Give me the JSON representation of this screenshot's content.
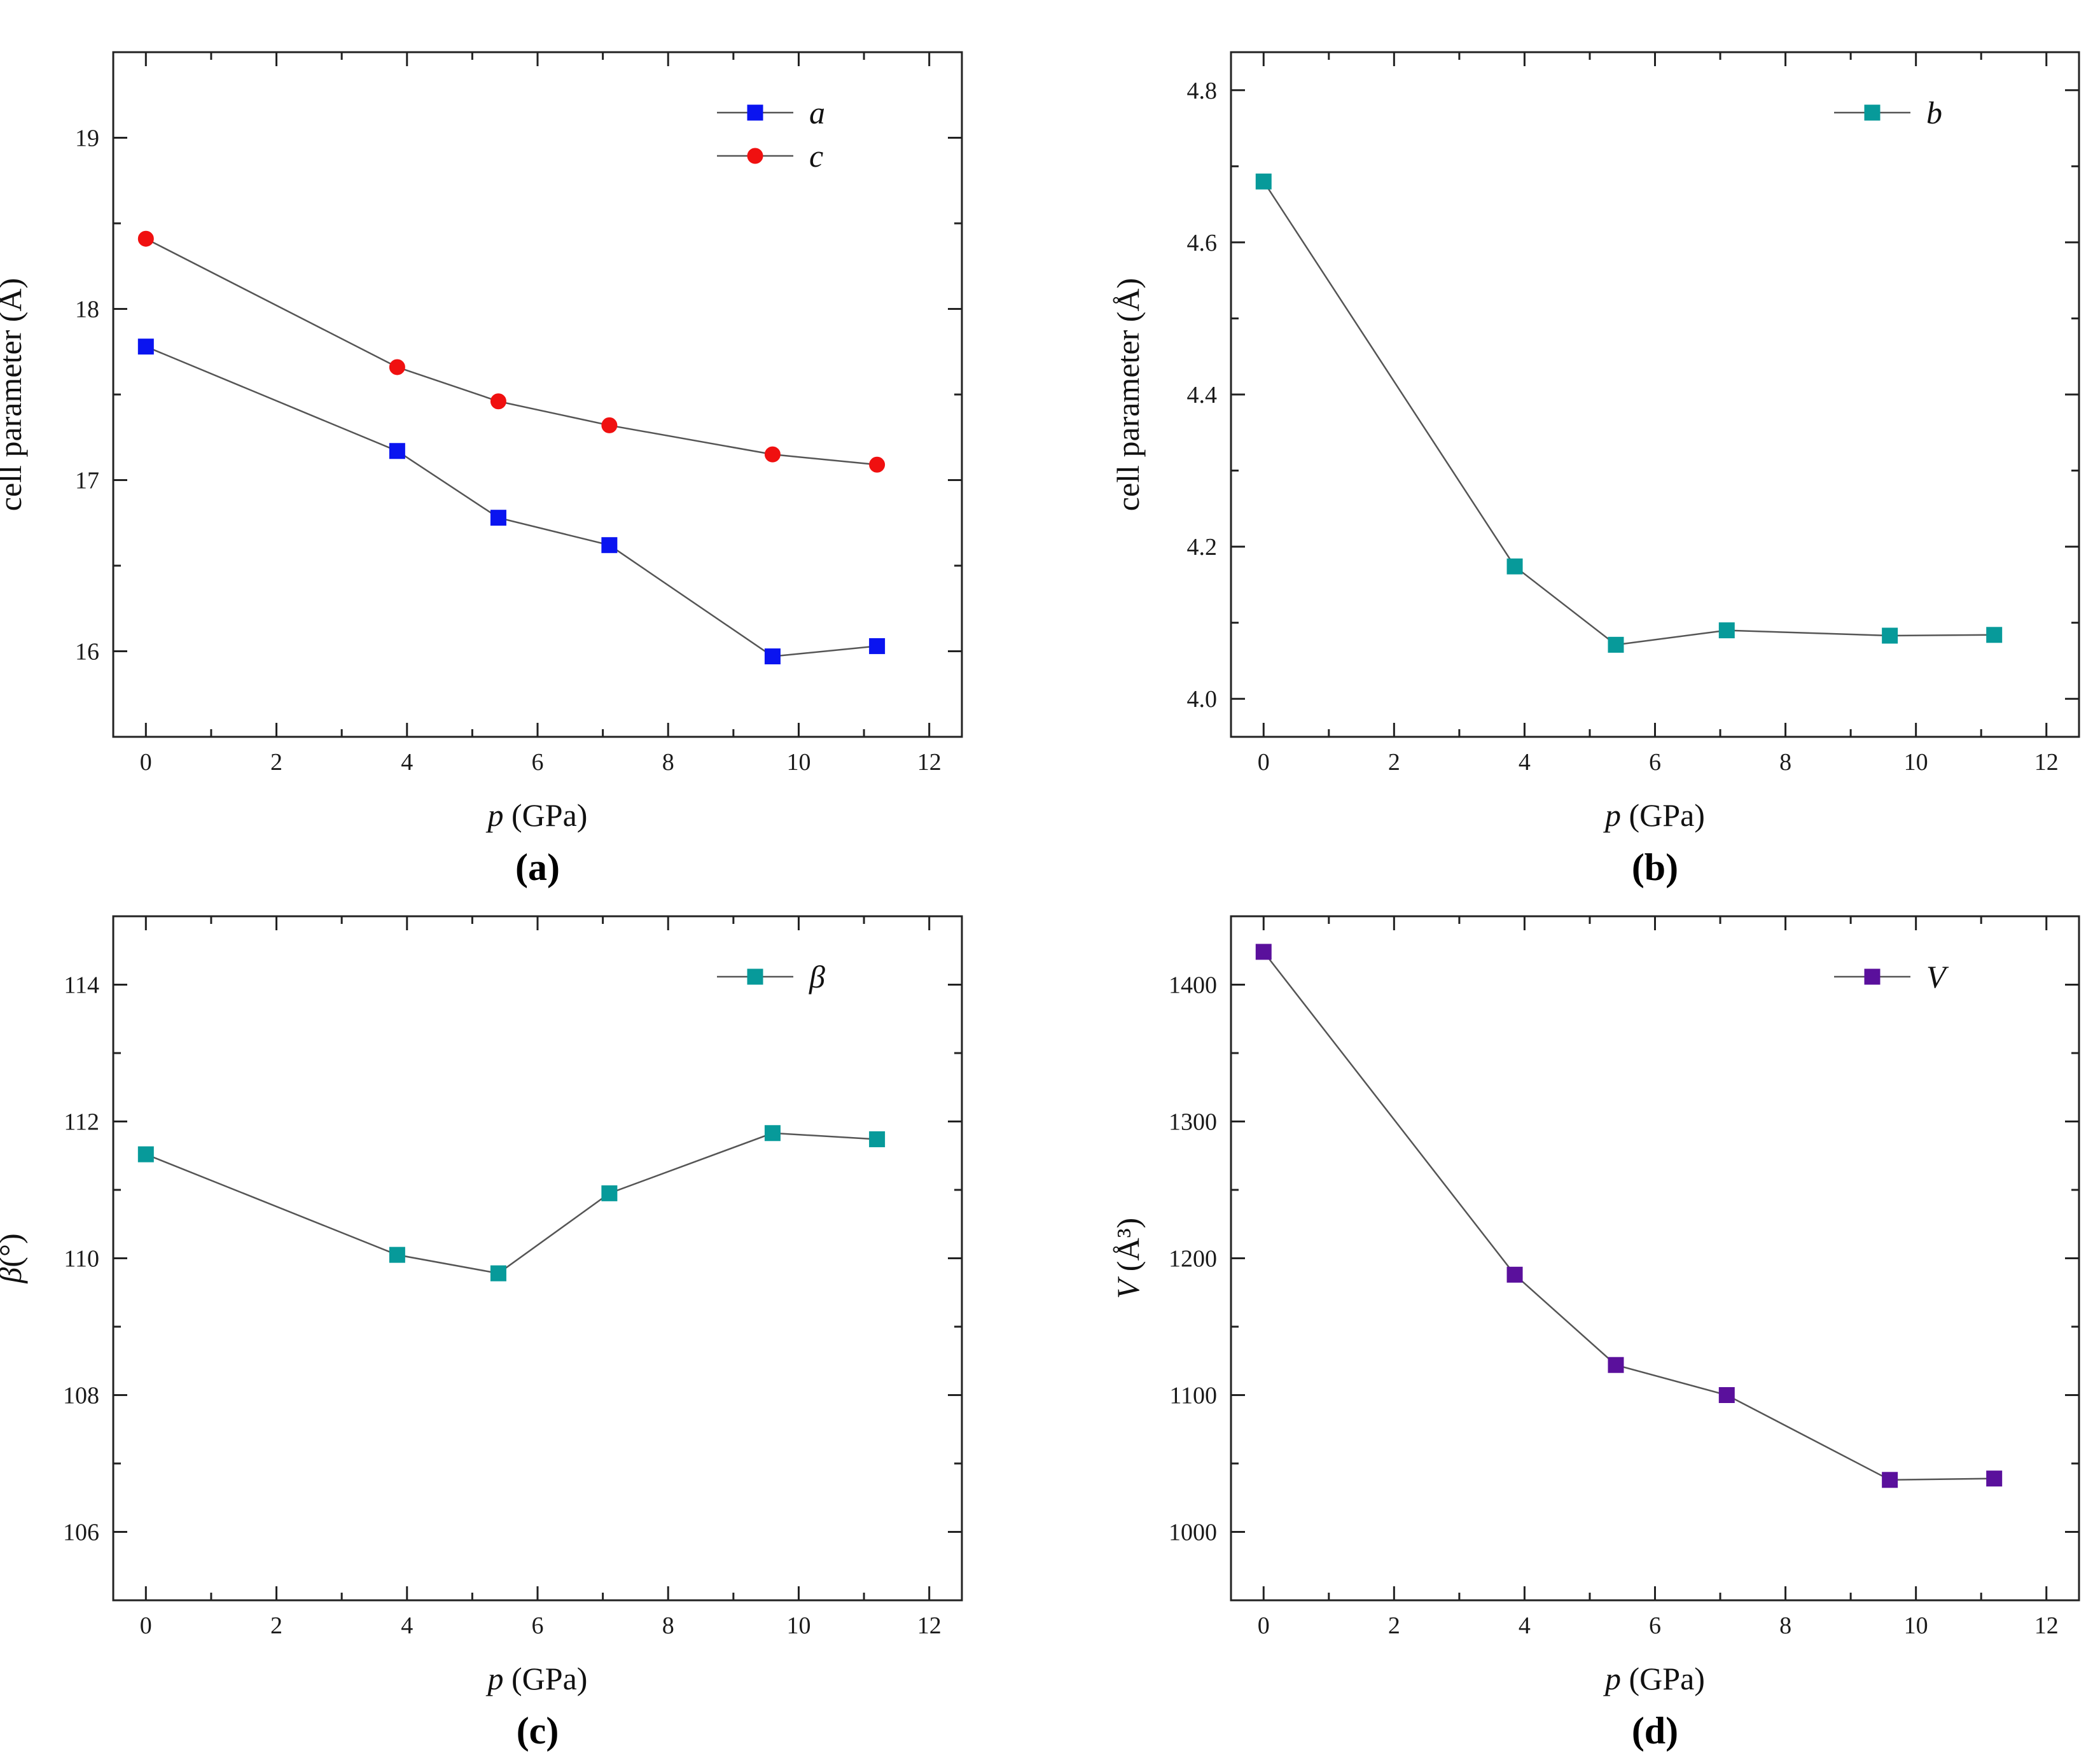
{
  "chart_data": [
    {
      "id": "a",
      "type": "line",
      "panel_label": "(a)",
      "xlabel": {
        "symbol": "p",
        "unit": " (GPa)"
      },
      "ylabel": {
        "text": "cell parameter (Å)"
      },
      "xlim": [
        -0.5,
        12.5
      ],
      "ylim": [
        15.5,
        19.5
      ],
      "xticks": [
        0,
        2,
        4,
        6,
        8,
        10,
        12
      ],
      "yticks": [
        16,
        17,
        18,
        19
      ],
      "legend_position": "top-right",
      "series": [
        {
          "name": "a",
          "marker": "square",
          "color": "#0a14f0",
          "x": [
            0,
            3.85,
            5.4,
            7.1,
            9.6,
            11.2
          ],
          "y": [
            17.78,
            17.17,
            16.78,
            16.62,
            15.97,
            16.03
          ]
        },
        {
          "name": "c",
          "marker": "circle",
          "color": "#f01010",
          "x": [
            0,
            3.85,
            5.4,
            7.1,
            9.6,
            11.2
          ],
          "y": [
            18.41,
            17.66,
            17.46,
            17.32,
            17.15,
            17.09
          ]
        }
      ]
    },
    {
      "id": "b",
      "type": "line",
      "panel_label": "(b)",
      "xlabel": {
        "symbol": "p",
        "unit": " (GPa)"
      },
      "ylabel": {
        "text": "cell parameter (Å)"
      },
      "xlim": [
        -0.5,
        12.5
      ],
      "ylim": [
        3.95,
        4.85
      ],
      "xticks": [
        0,
        2,
        4,
        6,
        8,
        10,
        12
      ],
      "yticks": [
        4.0,
        4.2,
        4.4,
        4.6,
        4.8
      ],
      "ytick_decimals": 1,
      "legend_position": "top-right",
      "series": [
        {
          "name": "b",
          "marker": "square",
          "color": "#079a9a",
          "x": [
            0,
            3.85,
            5.4,
            7.1,
            9.6,
            11.2
          ],
          "y": [
            4.68,
            4.174,
            4.071,
            4.09,
            4.083,
            4.084
          ]
        }
      ]
    },
    {
      "id": "c",
      "type": "line",
      "panel_label": "(c)",
      "xlabel": {
        "symbol": "p",
        "unit": " (GPa)"
      },
      "ylabel": {
        "symbol": "β",
        "unit": "(°)"
      },
      "xlim": [
        -0.5,
        12.5
      ],
      "ylim": [
        105,
        115
      ],
      "xticks": [
        0,
        2,
        4,
        6,
        8,
        10,
        12
      ],
      "yticks": [
        106,
        108,
        110,
        112,
        114
      ],
      "legend_position": "top-right",
      "series": [
        {
          "name": "β",
          "marker": "square",
          "color": "#079a9a",
          "x": [
            0,
            3.85,
            5.4,
            7.1,
            9.6,
            11.2
          ],
          "y": [
            111.52,
            110.05,
            109.78,
            110.95,
            111.83,
            111.74
          ]
        }
      ]
    },
    {
      "id": "d",
      "type": "line",
      "panel_label": "(d)",
      "xlabel": {
        "symbol": "p",
        "unit": " (GPa)"
      },
      "ylabel": {
        "symbol": "V",
        "unit": " (Å³)"
      },
      "xlim": [
        -0.5,
        12.5
      ],
      "ylim": [
        950,
        1450
      ],
      "xticks": [
        0,
        2,
        4,
        6,
        8,
        10,
        12
      ],
      "yticks": [
        1000,
        1100,
        1200,
        1300,
        1400
      ],
      "legend_position": "top-right",
      "series": [
        {
          "name": "V",
          "marker": "square",
          "color": "#5a109c",
          "x": [
            0,
            3.85,
            5.4,
            7.1,
            9.6,
            11.2
          ],
          "y": [
            1424,
            1188,
            1122,
            1100,
            1038,
            1039
          ]
        }
      ]
    }
  ]
}
